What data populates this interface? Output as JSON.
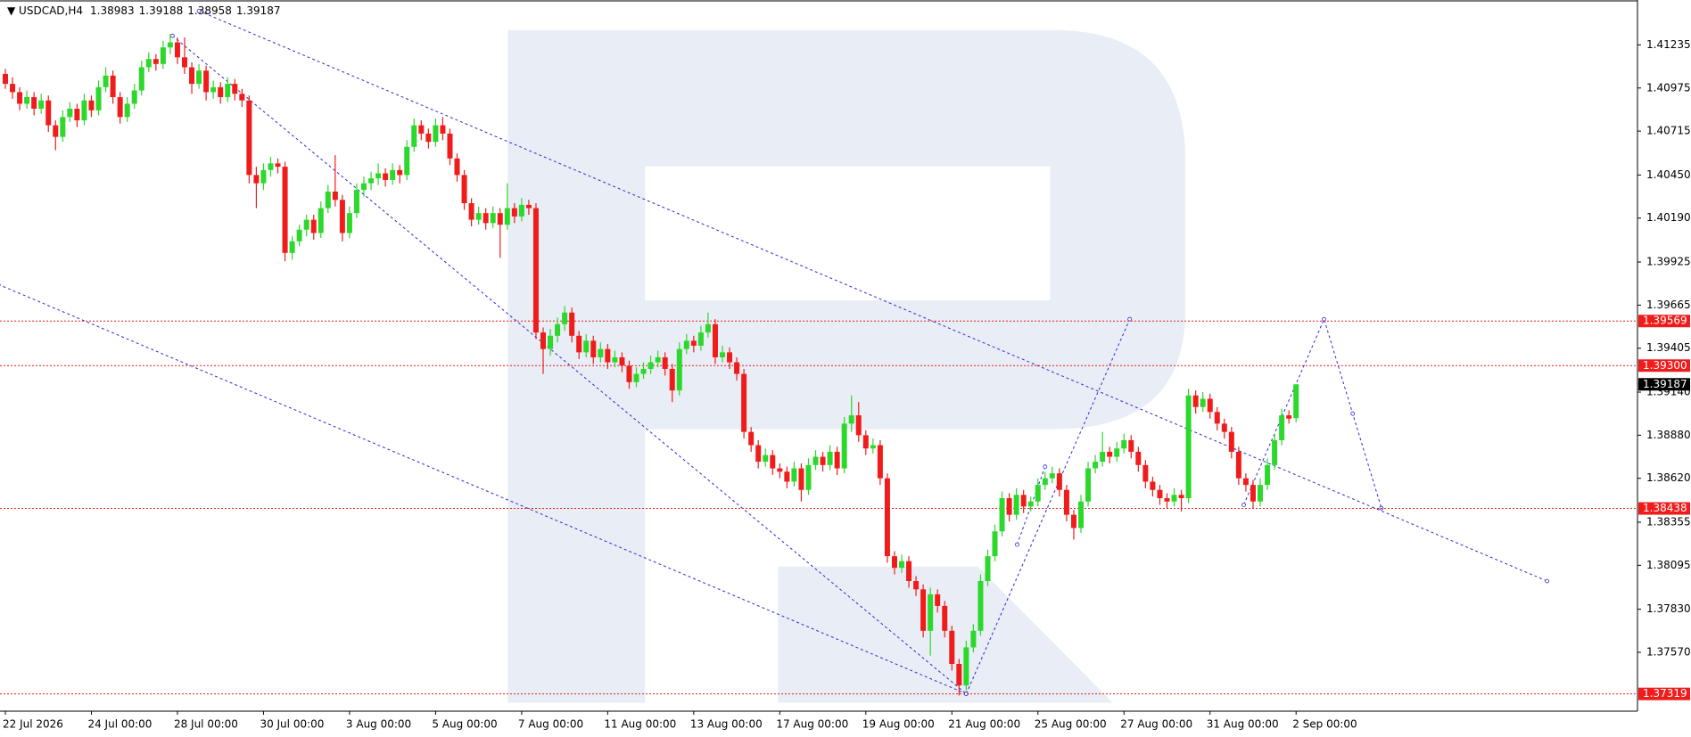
{
  "chart_data": {
    "type": "candlestick",
    "title": "USDCAD,H4",
    "ylim": [
      1.37215,
      1.41506
    ],
    "yticks": [
      1.41235,
      1.40975,
      1.40715,
      {
        "value": 1.4045,
        "label": "1.40450"
      },
      {
        "value": 1.4019,
        "label": "1.40190"
      },
      1.39925,
      1.39665,
      1.39405,
      {
        "value": 1.3914,
        "label": "1.39140"
      },
      {
        "value": 1.3888,
        "label": "1.38880"
      },
      {
        "value": 1.3862,
        "label": "1.38620"
      },
      1.38355,
      1.38095,
      {
        "value": 1.3783,
        "label": "1.37830"
      },
      {
        "value": 1.3757,
        "label": "1.37570"
      }
    ],
    "xticks": [
      {
        "value": 0,
        "label": "22 Jul 2026"
      },
      {
        "value": 12,
        "label": "24 Jul 00:00"
      },
      {
        "value": 24,
        "label": "28 Jul 00:00"
      },
      {
        "value": 36,
        "label": "30 Jul 00:00"
      },
      {
        "value": 48,
        "label": "3 Aug 00:00"
      },
      {
        "value": 60,
        "label": "5 Aug 00:00"
      },
      {
        "value": 72,
        "label": "7 Aug 00:00"
      },
      {
        "value": 84,
        "label": "11 Aug 00:00"
      },
      {
        "value": 96,
        "label": "13 Aug 00:00"
      },
      {
        "value": 108,
        "label": "17 Aug 00:00"
      },
      {
        "value": 120,
        "label": "19 Aug 00:00"
      },
      {
        "value": 132,
        "label": "21 Aug 00:00"
      },
      {
        "value": 144,
        "label": "25 Aug 00:00"
      },
      {
        "value": 156,
        "label": "27 Aug 00:00"
      },
      {
        "value": 168,
        "label": "31 Aug 00:00"
      },
      {
        "value": 180,
        "label": "2 Sep 00:00"
      }
    ],
    "colors": {
      "up": "#2bd82b",
      "down": "#f01c1c",
      "trendline": "#2a2ad6",
      "level": "#f01c1c",
      "last": "#000000"
    },
    "levels": [
      1.39569,
      {
        "value": 1.393,
        "label": "1.39300"
      },
      1.38438,
      1.37319
    ],
    "lines": [
      {
        "x": [
          27,
          215
        ],
        "y": [
          1.4144,
          1.38
        ]
      },
      {
        "x": [
          -1,
          134
        ],
        "y": [
          1.3979,
          1.3732
        ]
      },
      {
        "x": [
          23.3,
          134
        ],
        "y": [
          1.4129,
          1.3732
        ]
      },
      {
        "x": [
          134,
          156.8
        ],
        "y": [
          1.3732,
          1.3958
        ]
      },
      {
        "x": [
          141.1,
          145
        ],
        "y": [
          1.3822,
          1.3869
        ]
      },
      {
        "x": [
          172.7,
          183.9,
          187.9,
          191.9
        ],
        "y": [
          1.3846,
          1.3958,
          1.3901,
          1.3844
        ]
      }
    ],
    "candles": [
      [
        1.4106,
        1.4109,
        1.4097,
        1.41
      ],
      [
        1.41,
        1.4104,
        1.4091,
        1.4095
      ],
      [
        1.4095,
        1.4098,
        1.4084,
        1.4088
      ],
      [
        1.4088,
        1.4096,
        1.4085,
        1.4092
      ],
      [
        1.4092,
        1.4095,
        1.4081,
        1.4085
      ],
      [
        1.4085,
        1.4094,
        1.4082,
        1.409
      ],
      [
        1.409,
        1.4093,
        1.4071,
        1.4075
      ],
      [
        1.4075,
        1.4078,
        1.406,
        1.4068
      ],
      [
        1.4068,
        1.4084,
        1.4065,
        1.408
      ],
      [
        1.408,
        1.4089,
        1.4077,
        1.4085
      ],
      [
        1.4085,
        1.4088,
        1.4074,
        1.4078
      ],
      [
        1.4078,
        1.4094,
        1.4075,
        1.409
      ],
      [
        1.409,
        1.4093,
        1.408,
        1.4084
      ],
      [
        1.4084,
        1.4102,
        1.4081,
        1.4098
      ],
      [
        1.4098,
        1.411,
        1.4095,
        1.4105
      ],
      [
        1.4105,
        1.4108,
        1.4088,
        1.4092
      ],
      [
        1.4092,
        1.4095,
        1.4076,
        1.408
      ],
      [
        1.408,
        1.4092,
        1.4077,
        1.4088
      ],
      [
        1.4088,
        1.41,
        1.4085,
        1.4096
      ],
      [
        1.4096,
        1.4114,
        1.4093,
        1.411
      ],
      [
        1.411,
        1.4119,
        1.4107,
        1.4115
      ],
      [
        1.4115,
        1.4118,
        1.4108,
        1.4112
      ],
      [
        1.4112,
        1.4126,
        1.4109,
        1.4122
      ],
      [
        1.4122,
        1.413,
        1.4118,
        1.4125
      ],
      [
        1.4125,
        1.4128,
        1.4112,
        1.4116
      ],
      [
        1.4116,
        1.4128,
        1.4106,
        1.411
      ],
      [
        1.411,
        1.4113,
        1.4094,
        1.41
      ],
      [
        1.41,
        1.4112,
        1.4097,
        1.4108
      ],
      [
        1.4108,
        1.4111,
        1.409,
        1.4095
      ],
      [
        1.4095,
        1.4102,
        1.4091,
        1.4098
      ],
      [
        1.4098,
        1.4101,
        1.4088,
        1.4092
      ],
      [
        1.4092,
        1.4104,
        1.4089,
        1.41
      ],
      [
        1.41,
        1.4103,
        1.409,
        1.4094
      ],
      [
        1.4094,
        1.4097,
        1.4086,
        1.409
      ],
      [
        1.409,
        1.4093,
        1.404,
        1.4045
      ],
      [
        1.4045,
        1.405,
        1.4025,
        1.404
      ],
      [
        1.404,
        1.4052,
        1.4036,
        1.4048
      ],
      [
        1.4048,
        1.4056,
        1.4044,
        1.4052
      ],
      [
        1.4052,
        1.4055,
        1.4046,
        1.405
      ],
      [
        1.405,
        1.4053,
        1.3993,
        1.3998
      ],
      [
        1.3998,
        1.4008,
        1.3994,
        1.4005
      ],
      [
        1.4005,
        1.4015,
        1.4002,
        1.4012
      ],
      [
        1.4012,
        1.4021,
        1.4008,
        1.4018
      ],
      [
        1.4018,
        1.4021,
        1.4006,
        1.401
      ],
      [
        1.401,
        1.4029,
        1.4007,
        1.4025
      ],
      [
        1.4025,
        1.4039,
        1.4022,
        1.4035
      ],
      [
        1.4035,
        1.4057,
        1.4026,
        1.403
      ],
      [
        1.403,
        1.4033,
        1.4005,
        1.401
      ],
      [
        1.401,
        1.4026,
        1.4007,
        1.4022
      ],
      [
        1.4022,
        1.404,
        1.4019,
        1.4036
      ],
      [
        1.4036,
        1.4044,
        1.4032,
        1.404
      ],
      [
        1.404,
        1.4047,
        1.4036,
        1.4043
      ],
      [
        1.4043,
        1.4052,
        1.4039,
        1.4046
      ],
      [
        1.4046,
        1.4049,
        1.4038,
        1.4042
      ],
      [
        1.4042,
        1.4052,
        1.4039,
        1.4048
      ],
      [
        1.4048,
        1.4051,
        1.404,
        1.4045
      ],
      [
        1.4045,
        1.4066,
        1.4042,
        1.4062
      ],
      [
        1.4062,
        1.4079,
        1.4059,
        1.4075
      ],
      [
        1.4075,
        1.4078,
        1.4066,
        1.407
      ],
      [
        1.407,
        1.4073,
        1.4061,
        1.4065
      ],
      [
        1.4065,
        1.4079,
        1.4062,
        1.4075
      ],
      [
        1.4075,
        1.408,
        1.4066,
        1.407
      ],
      [
        1.407,
        1.4073,
        1.4051,
        1.4055
      ],
      [
        1.4055,
        1.4058,
        1.4041,
        1.4045
      ],
      [
        1.4045,
        1.4048,
        1.4024,
        1.4028
      ],
      [
        1.4028,
        1.4031,
        1.4014,
        1.4018
      ],
      [
        1.4018,
        1.4026,
        1.4015,
        1.4022
      ],
      [
        1.4022,
        1.4025,
        1.4012,
        1.4016
      ],
      [
        1.4016,
        1.4026,
        1.4013,
        1.4022
      ],
      [
        1.4022,
        1.4025,
        1.3995,
        1.4015
      ],
      [
        1.4015,
        1.404,
        1.4012,
        1.4025
      ],
      [
        1.4025,
        1.4028,
        1.4016,
        1.402
      ],
      [
        1.402,
        1.4031,
        1.4017,
        1.4027
      ],
      [
        1.4027,
        1.403,
        1.4021,
        1.4025
      ],
      [
        1.4025,
        1.4028,
        1.3946,
        1.395
      ],
      [
        1.395,
        1.3953,
        1.3925,
        1.394
      ],
      [
        1.394,
        1.3952,
        1.3936,
        1.3948
      ],
      [
        1.3948,
        1.3959,
        1.3944,
        1.3955
      ],
      [
        1.3955,
        1.3966,
        1.3951,
        1.3962
      ],
      [
        1.3962,
        1.3965,
        1.3944,
        1.3948
      ],
      [
        1.3948,
        1.3951,
        1.3934,
        1.3938
      ],
      [
        1.3938,
        1.3949,
        1.3935,
        1.3945
      ],
      [
        1.3945,
        1.3948,
        1.3931,
        1.3935
      ],
      [
        1.3935,
        1.3944,
        1.3932,
        1.394
      ],
      [
        1.394,
        1.3943,
        1.3928,
        1.3932
      ],
      [
        1.3932,
        1.3939,
        1.3929,
        1.3935
      ],
      [
        1.3935,
        1.3938,
        1.3926,
        1.393
      ],
      [
        1.393,
        1.3933,
        1.3916,
        1.392
      ],
      [
        1.392,
        1.3929,
        1.3917,
        1.3925
      ],
      [
        1.3925,
        1.3932,
        1.3922,
        1.3928
      ],
      [
        1.3928,
        1.3936,
        1.3925,
        1.3932
      ],
      [
        1.3932,
        1.3939,
        1.3929,
        1.3935
      ],
      [
        1.3935,
        1.3938,
        1.3924,
        1.3928
      ],
      [
        1.3928,
        1.3931,
        1.3908,
        1.3915
      ],
      [
        1.3915,
        1.3944,
        1.3912,
        1.394
      ],
      [
        1.394,
        1.3949,
        1.3937,
        1.3945
      ],
      [
        1.3945,
        1.3948,
        1.3938,
        1.3942
      ],
      [
        1.3942,
        1.3954,
        1.3939,
        1.395
      ],
      [
        1.395,
        1.3962,
        1.3947,
        1.3955
      ],
      [
        1.3955,
        1.3958,
        1.3931,
        1.3935
      ],
      [
        1.3935,
        1.3942,
        1.3932,
        1.3938
      ],
      [
        1.3938,
        1.3941,
        1.3928,
        1.3932
      ],
      [
        1.3932,
        1.3935,
        1.3921,
        1.3925
      ],
      [
        1.3925,
        1.3928,
        1.3886,
        1.389
      ],
      [
        1.389,
        1.3893,
        1.3878,
        1.3882
      ],
      [
        1.3882,
        1.3885,
        1.3868,
        1.3872
      ],
      [
        1.3872,
        1.388,
        1.3869,
        1.3876
      ],
      [
        1.3876,
        1.3879,
        1.3864,
        1.3868
      ],
      [
        1.3868,
        1.3871,
        1.3862,
        1.3866
      ],
      [
        1.3866,
        1.3869,
        1.3856,
        1.386
      ],
      [
        1.386,
        1.3872,
        1.3857,
        1.3868
      ],
      [
        1.3868,
        1.3871,
        1.3848,
        1.3855
      ],
      [
        1.3855,
        1.3874,
        1.3852,
        1.387
      ],
      [
        1.387,
        1.3879,
        1.3867,
        1.3875
      ],
      [
        1.3875,
        1.3878,
        1.3866,
        1.387
      ],
      [
        1.387,
        1.3882,
        1.3867,
        1.3878
      ],
      [
        1.3878,
        1.3881,
        1.3864,
        1.3868
      ],
      [
        1.3868,
        1.3899,
        1.3865,
        1.3895
      ],
      [
        1.3895,
        1.3912,
        1.389,
        1.39
      ],
      [
        1.39,
        1.3908,
        1.3884,
        1.3888
      ],
      [
        1.3888,
        1.3891,
        1.3876,
        1.388
      ],
      [
        1.388,
        1.3886,
        1.3877,
        1.3882
      ],
      [
        1.3882,
        1.3885,
        1.3858,
        1.3862
      ],
      [
        1.3862,
        1.3865,
        1.3811,
        1.3815
      ],
      [
        1.3815,
        1.3818,
        1.3804,
        1.3808
      ],
      [
        1.3808,
        1.3816,
        1.3805,
        1.3812
      ],
      [
        1.3812,
        1.3815,
        1.3796,
        1.38
      ],
      [
        1.38,
        1.3803,
        1.3791,
        1.3795
      ],
      [
        1.3795,
        1.3798,
        1.3766,
        1.377
      ],
      [
        1.377,
        1.3796,
        1.3755,
        1.3792
      ],
      [
        1.3792,
        1.3795,
        1.3781,
        1.3785
      ],
      [
        1.3785,
        1.3788,
        1.3766,
        1.377
      ],
      [
        1.377,
        1.3773,
        1.3746,
        1.375
      ],
      [
        1.375,
        1.3753,
        1.3731,
        1.3737
      ],
      [
        1.3737,
        1.3764,
        1.3734,
        1.376
      ],
      [
        1.376,
        1.3774,
        1.3757,
        1.377
      ],
      [
        1.377,
        1.3804,
        1.3767,
        1.38
      ],
      [
        1.38,
        1.3819,
        1.3797,
        1.3815
      ],
      [
        1.3815,
        1.3834,
        1.3812,
        1.383
      ],
      [
        1.383,
        1.3854,
        1.3827,
        1.385
      ],
      [
        1.385,
        1.3853,
        1.3836,
        1.384
      ],
      [
        1.384,
        1.3856,
        1.3837,
        1.3852
      ],
      [
        1.3852,
        1.3855,
        1.3841,
        1.3845
      ],
      [
        1.3845,
        1.3851,
        1.3842,
        1.3848
      ],
      [
        1.3848,
        1.3862,
        1.3845,
        1.3858
      ],
      [
        1.3858,
        1.3866,
        1.3855,
        1.3862
      ],
      [
        1.3862,
        1.3869,
        1.3859,
        1.3865
      ],
      [
        1.3865,
        1.3868,
        1.3851,
        1.3855
      ],
      [
        1.3855,
        1.3858,
        1.3836,
        1.384
      ],
      [
        1.384,
        1.3843,
        1.3825,
        1.3832
      ],
      [
        1.3832,
        1.3852,
        1.3829,
        1.3848
      ],
      [
        1.3848,
        1.3872,
        1.3845,
        1.3868
      ],
      [
        1.3868,
        1.3876,
        1.3865,
        1.3872
      ],
      [
        1.3872,
        1.389,
        1.3869,
        1.3878
      ],
      [
        1.3878,
        1.3881,
        1.3871,
        1.3875
      ],
      [
        1.3875,
        1.3884,
        1.3872,
        1.388
      ],
      [
        1.388,
        1.3889,
        1.3877,
        1.3885
      ],
      [
        1.3885,
        1.3888,
        1.3874,
        1.3878
      ],
      [
        1.3878,
        1.3881,
        1.3866,
        1.387
      ],
      [
        1.387,
        1.3873,
        1.3856,
        1.386
      ],
      [
        1.386,
        1.3863,
        1.3851,
        1.3855
      ],
      [
        1.3855,
        1.3858,
        1.3846,
        1.385
      ],
      [
        1.385,
        1.3853,
        1.3844,
        1.3848
      ],
      [
        1.3848,
        1.3856,
        1.3845,
        1.3852
      ],
      [
        1.3852,
        1.3855,
        1.3842,
        1.385
      ],
      [
        1.385,
        1.3916,
        1.3847,
        1.3912
      ],
      [
        1.3912,
        1.3915,
        1.3901,
        1.3905
      ],
      [
        1.3905,
        1.3914,
        1.3902,
        1.391
      ],
      [
        1.391,
        1.3913,
        1.3898,
        1.3902
      ],
      [
        1.3902,
        1.3905,
        1.3891,
        1.3895
      ],
      [
        1.3895,
        1.3898,
        1.3886,
        1.389
      ],
      [
        1.389,
        1.3893,
        1.3874,
        1.3878
      ],
      [
        1.3878,
        1.3881,
        1.3858,
        1.3862
      ],
      [
        1.3862,
        1.3865,
        1.3854,
        1.3858
      ],
      [
        1.3858,
        1.3861,
        1.3844,
        1.3848
      ],
      [
        1.3848,
        1.3862,
        1.3845,
        1.3858
      ],
      [
        1.3858,
        1.3874,
        1.3855,
        1.387
      ],
      [
        1.387,
        1.3889,
        1.3867,
        1.3885
      ],
      [
        1.3885,
        1.3904,
        1.3882,
        1.39
      ],
      [
        1.39,
        1.3903,
        1.3895,
        1.3898
      ],
      [
        1.38983,
        1.39188,
        1.38958,
        1.39187
      ]
    ]
  }
}
